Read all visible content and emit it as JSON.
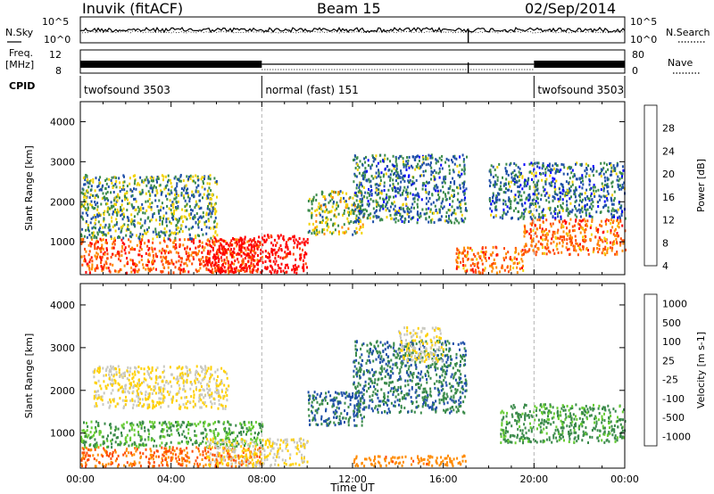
{
  "header": {
    "station": "Inuvik (fitACF)",
    "beam": "Beam 15",
    "date": "02/Sep/2014"
  },
  "status_panels": {
    "nsky_label": "N.Sky",
    "nsearch_label": "N.Search",
    "freq_label_1": "Freq.",
    "freq_label_2": "[MHz]",
    "nave_label": "Nave",
    "cpid_label": "CPID",
    "noise_left_top": "10^5",
    "noise_left_bottom": "10^0",
    "noise_right_top": "10^5",
    "noise_right_bottom": "10^0",
    "freq_left_top": "12",
    "freq_left_bottom": "8",
    "nave_right_top": "80",
    "nave_right_bottom": "0",
    "cpid_segments": [
      {
        "label": "twofsound 3503",
        "start_hour": 0,
        "end_hour": 8
      },
      {
        "label": "normal (fast) 151",
        "start_hour": 8,
        "end_hour": 20
      },
      {
        "label": "twofsound 3503",
        "start_hour": 20,
        "end_hour": 24
      }
    ]
  },
  "chart_data": [
    {
      "type": "heatmap",
      "title": "",
      "xlabel": "",
      "ylabel": "Slant Range [km]",
      "xlim": [
        0,
        24
      ],
      "ylim": [
        180,
        4500
      ],
      "x_ticks": [
        "00:00",
        "04:00",
        "08:00",
        "12:00",
        "16:00",
        "20:00",
        "00:00"
      ],
      "y_ticks": [
        1000,
        2000,
        3000,
        4000
      ],
      "colorbar": {
        "label": "Power [dB]",
        "ticks": [
          "28",
          "24",
          "20",
          "16",
          "12",
          "8",
          "4"
        ],
        "colors": [
          "#ff0000",
          "#ff4a00",
          "#ff8a00",
          "#f2d200",
          "#3a8a4a",
          "#1f4fa8",
          "#0000ff"
        ]
      },
      "regions": [
        {
          "t0": 0.0,
          "t1": 8.0,
          "r0": 250,
          "r1": 1100,
          "level": 24
        },
        {
          "t0": 5.5,
          "t1": 10.0,
          "r0": 250,
          "r1": 1200,
          "level": 30
        },
        {
          "t0": 0.0,
          "t1": 6.0,
          "r0": 1100,
          "r1": 2700,
          "level": 12
        },
        {
          "t0": 10.0,
          "t1": 12.5,
          "r0": 1200,
          "r1": 2300,
          "level": 14
        },
        {
          "t0": 12.0,
          "t1": 17.0,
          "r0": 1500,
          "r1": 3200,
          "level": 10
        },
        {
          "t0": 16.5,
          "t1": 19.5,
          "r0": 250,
          "r1": 900,
          "level": 22
        },
        {
          "t0": 19.5,
          "t1": 24.0,
          "r0": 700,
          "r1": 1600,
          "level": 22
        },
        {
          "t0": 18.0,
          "t1": 24.0,
          "r0": 1600,
          "r1": 3000,
          "level": 10
        }
      ]
    },
    {
      "type": "heatmap",
      "title": "",
      "xlabel": "Time UT",
      "ylabel": "Slant Range [km]",
      "xlim": [
        0,
        24
      ],
      "ylim": [
        180,
        4500
      ],
      "x_ticks": [
        "00:00",
        "04:00",
        "08:00",
        "12:00",
        "16:00",
        "20:00",
        "00:00"
      ],
      "y_ticks": [
        1000,
        2000,
        3000,
        4000
      ],
      "colorbar": {
        "label": "Velocity [m s-1]",
        "ticks": [
          "1000",
          "500",
          "100",
          "25",
          "-25",
          "-100",
          "-500",
          "-1000"
        ],
        "colors": [
          "#1f4fa8",
          "#3a8a4a",
          "#66cc33",
          "#c8c8c0",
          "#ffd000",
          "#ff8a00",
          "#ff4a00",
          "#ff0000"
        ]
      },
      "regions": [
        {
          "t0": 0.0,
          "t1": 8.0,
          "r0": 250,
          "r1": 700,
          "level": -300
        },
        {
          "t0": 0.0,
          "t1": 8.0,
          "r0": 700,
          "r1": 1300,
          "level": 300
        },
        {
          "t0": 0.5,
          "t1": 6.5,
          "r0": 1600,
          "r1": 2600,
          "level": 0
        },
        {
          "t0": 5.5,
          "t1": 10.0,
          "r0": 250,
          "r1": 900,
          "level": 0
        },
        {
          "t0": 10.0,
          "t1": 12.5,
          "r0": 1200,
          "r1": 2000,
          "level": 800
        },
        {
          "t0": 12.0,
          "t1": 17.0,
          "r0": 1500,
          "r1": 3200,
          "level": 700
        },
        {
          "t0": 14.0,
          "t1": 16.0,
          "r0": 2700,
          "r1": 3500,
          "level": 0
        },
        {
          "t0": 18.5,
          "t1": 24.0,
          "r0": 800,
          "r1": 1700,
          "level": 400
        },
        {
          "t0": 12.0,
          "t1": 17.0,
          "r0": 250,
          "r1": 500,
          "level": -200
        }
      ]
    }
  ],
  "colors": {
    "background": "#ffffff",
    "axis": "#000000",
    "divider": "#b4b4b4"
  }
}
